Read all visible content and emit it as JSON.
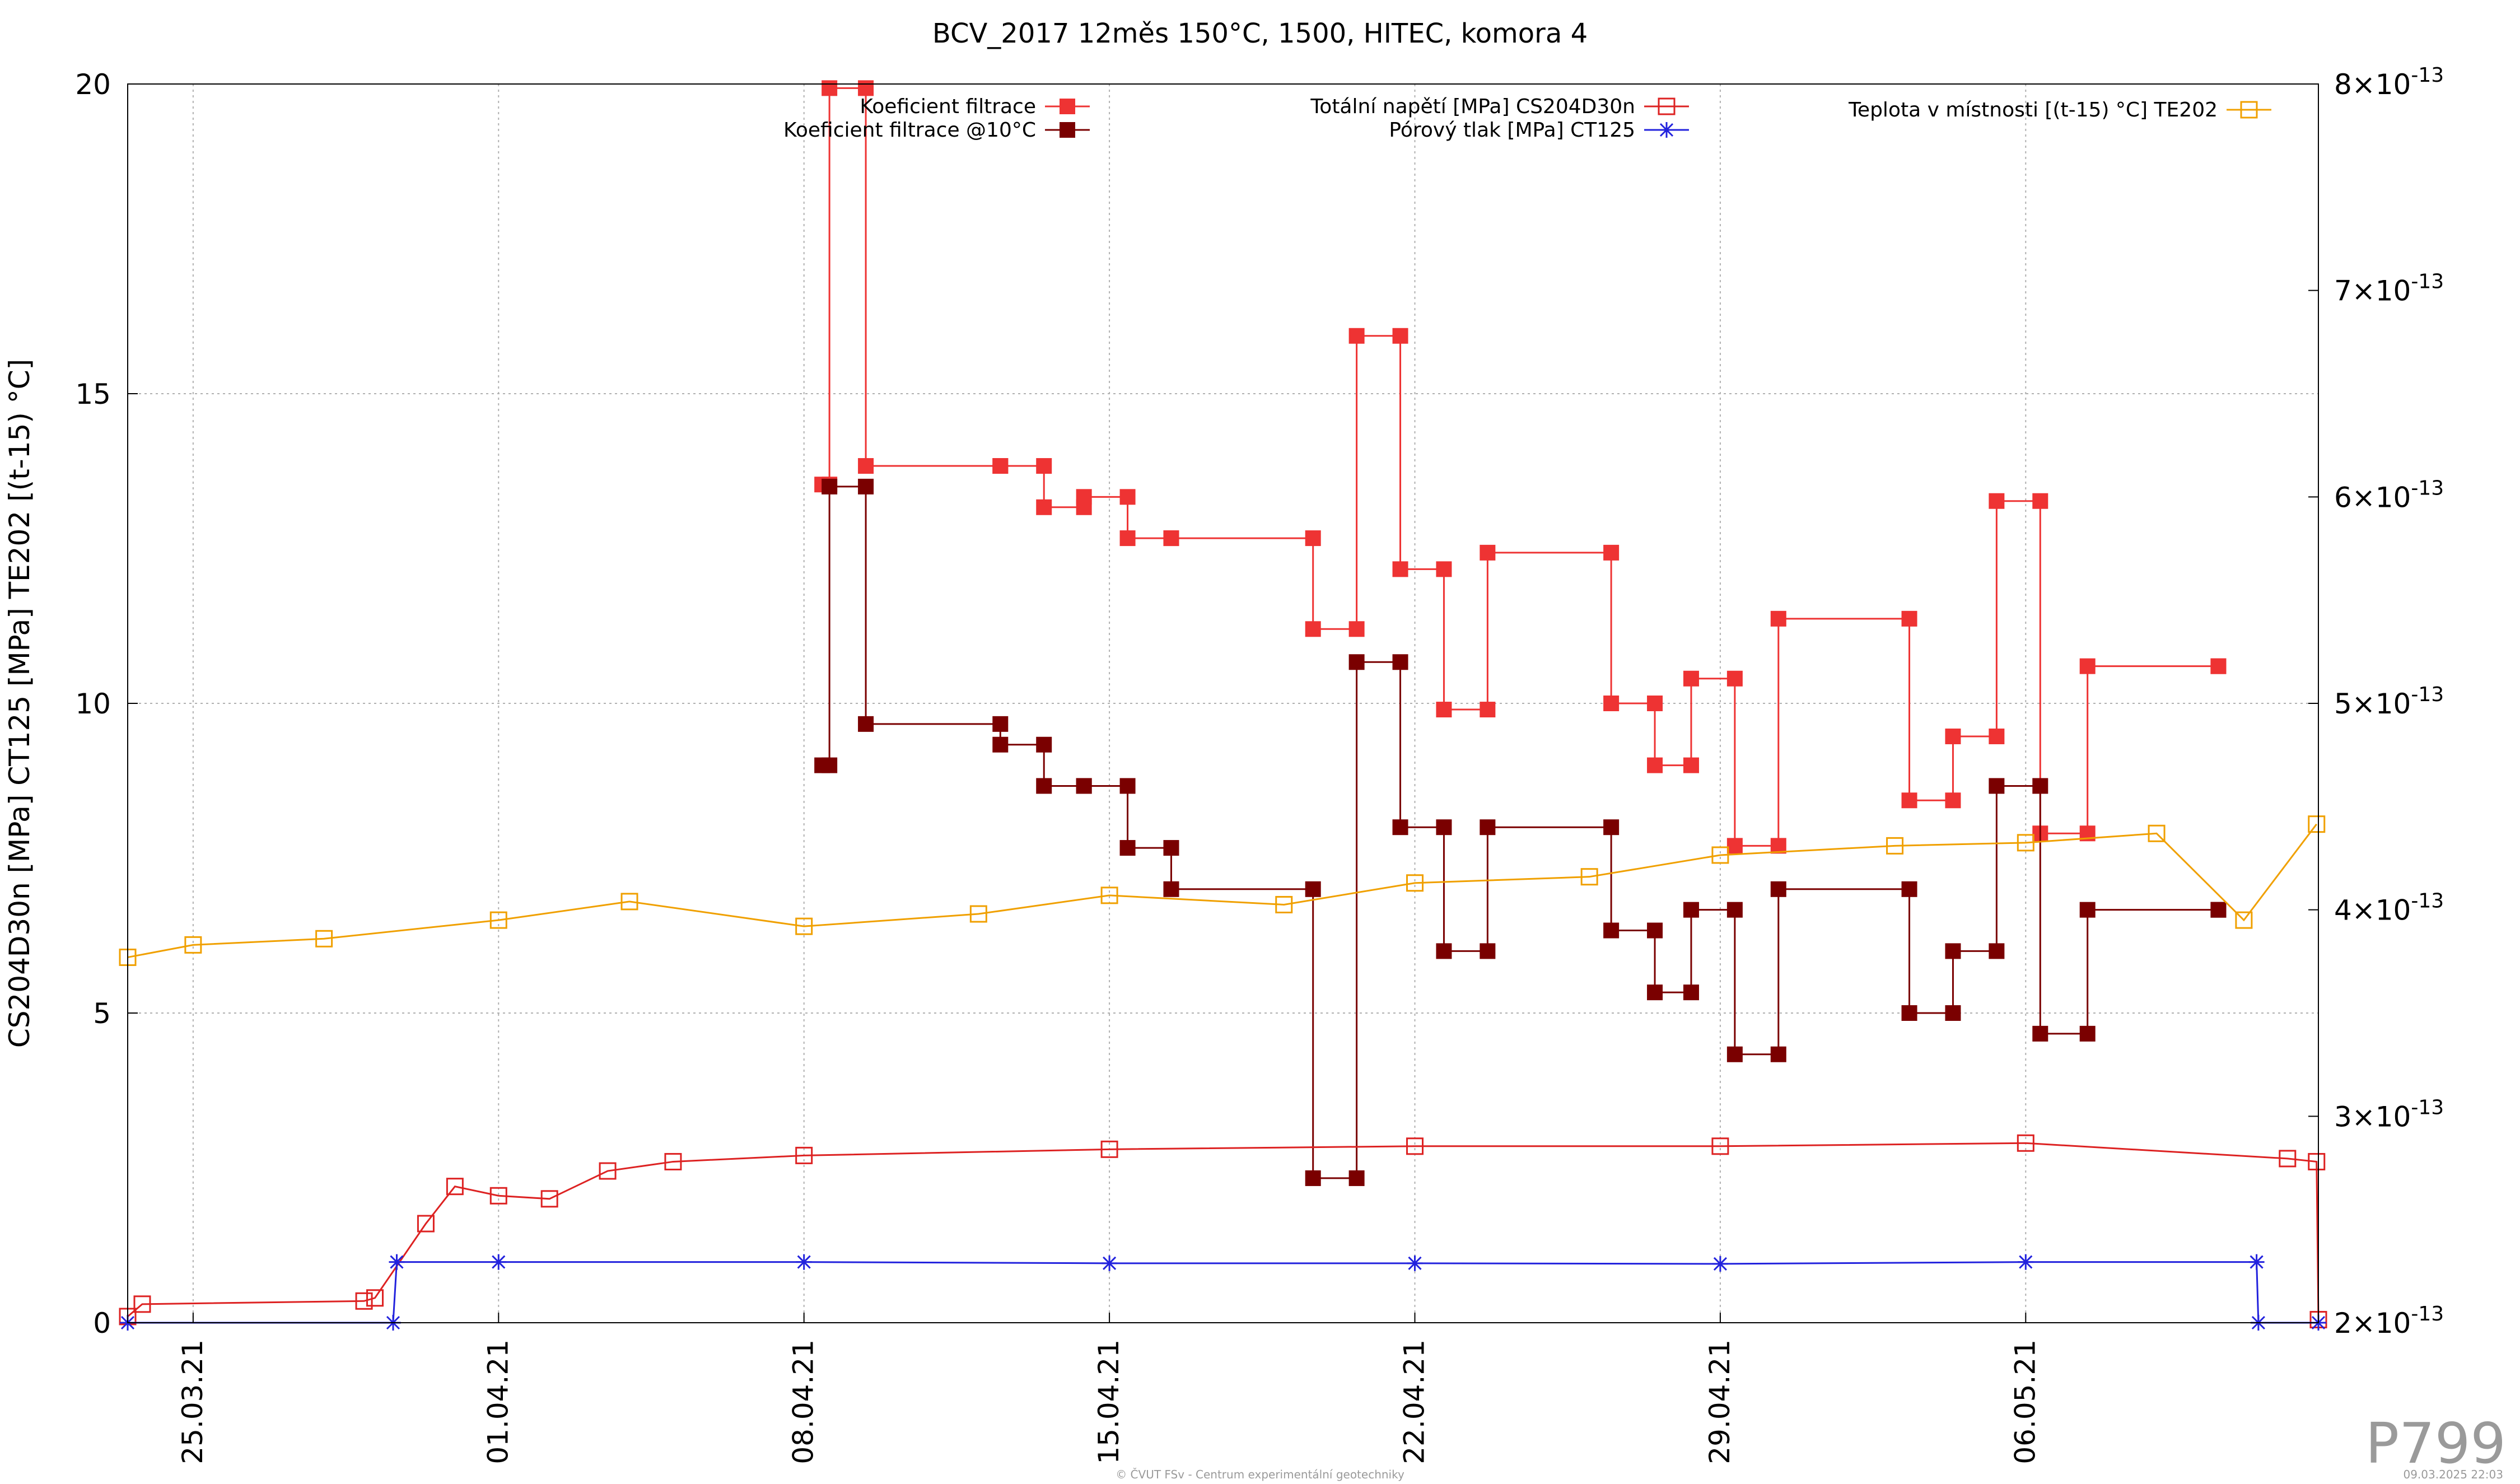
{
  "title": "BCV_2017 12měs 150°C, 1500, HITEC, komora 4",
  "plot_code": "P799",
  "footer": {
    "credit": "© ČVUT FSv - Centrum experimentální geotechniky",
    "timestamp": "09.03.2025 22:03"
  },
  "colors": {
    "filtrace": "#ee3333",
    "filtrace10": "#7a0000",
    "napeti": "#dd2222",
    "porovy": "#2222dd",
    "teplota": "#f0a000",
    "grid": "#b0b0b0"
  },
  "chart_data": {
    "type": "line",
    "title": "BCV_2017 12měs 150°C, 1500, HITEC, komora 4",
    "ylabel": "CS204D30n [MPa] CT125 [MPa] TE202 [(t-15) °C]",
    "xlabel": "",
    "xlim": [
      "2021-03-23 12:00",
      "2021-05-12 17:00"
    ],
    "ylim": [
      0,
      20
    ],
    "y2lim": [
      2e-13,
      8e-13
    ],
    "x_ticks": [
      "2021-03-25",
      "2021-04-01",
      "2021-04-08",
      "2021-04-15",
      "2021-04-22",
      "2021-04-29",
      "2021-05-06"
    ],
    "x_tick_labels": [
      "25.03.21",
      "01.04.21",
      "08.04.21",
      "15.04.21",
      "22.04.21",
      "29.04.21",
      "06.05.21"
    ],
    "y_ticks": [
      0,
      5,
      10,
      15,
      20
    ],
    "y_tick_labels": [
      "0",
      "5",
      "10",
      "15",
      "20"
    ],
    "y2_ticks": [
      2e-13,
      3e-13,
      4e-13,
      5e-13,
      6e-13,
      7e-13,
      8e-13
    ],
    "y2_tick_labels": [
      [
        "2",
        "-13"
      ],
      [
        "3",
        "-13"
      ],
      [
        "4",
        "-13"
      ],
      [
        "5",
        "-13"
      ],
      [
        "6",
        "-13"
      ],
      [
        "7",
        "-13"
      ],
      [
        "8",
        "-13"
      ]
    ],
    "grid": true,
    "legend_placement": "top",
    "series": [
      {
        "name": "Koeficient filtrace",
        "axis": "y2",
        "marker": "filled-square",
        "color": "#ee3333",
        "x": [
          "2021-04-08 10:00",
          "2021-04-08 14:00",
          "2021-04-09 10:00",
          "2021-04-12 12:00",
          "2021-04-13 12:00",
          "2021-04-14 10:00",
          "2021-04-15 10:00",
          "2021-04-16 10:00",
          "2021-04-19 16:00",
          "2021-04-20 16:00",
          "2021-04-21 16:00",
          "2021-04-22 16:00",
          "2021-04-23 16:00",
          "2021-04-26 12:00",
          "2021-04-27 12:00",
          "2021-04-28 08:00",
          "2021-04-29 08:00",
          "2021-04-30 08:00",
          "2021-05-03 08:00",
          "2021-05-04 08:00",
          "2021-05-05 08:00",
          "2021-05-06 08:00",
          "2021-05-07 10:00",
          "2021-05-10 10:00"
        ],
        "y": [
          6.06e-13,
          7.98e-13,
          6.15e-13,
          6.15e-13,
          5.95e-13,
          6e-13,
          5.8e-13,
          5.8e-13,
          5.36e-13,
          6.78e-13,
          5.65e-13,
          4.97e-13,
          5.73e-13,
          5e-13,
          4.7e-13,
          5.12e-13,
          4.31e-13,
          5.41e-13,
          4.53e-13,
          4.84e-13,
          5.98e-13,
          4.37e-13,
          5.18e-13,
          5.18e-13
        ]
      },
      {
        "name": "Koeficient filtrace @10°C",
        "axis": "y2",
        "marker": "filled-square",
        "color": "#7a0000",
        "x": [
          "2021-04-08 10:00",
          "2021-04-08 14:00",
          "2021-04-09 10:00",
          "2021-04-12 12:00",
          "2021-04-13 12:00",
          "2021-04-14 10:00",
          "2021-04-15 10:00",
          "2021-04-16 10:00",
          "2021-04-19 16:00",
          "2021-04-20 16:00",
          "2021-04-21 16:00",
          "2021-04-22 16:00",
          "2021-04-23 16:00",
          "2021-04-26 12:00",
          "2021-04-27 12:00",
          "2021-04-28 08:00",
          "2021-04-29 08:00",
          "2021-04-30 08:00",
          "2021-05-03 08:00",
          "2021-05-04 08:00",
          "2021-05-05 08:00",
          "2021-05-06 08:00",
          "2021-05-07 10:00",
          "2021-05-10 10:00"
        ],
        "y": [
          4.7e-13,
          6.05e-13,
          4.9e-13,
          4.8e-13,
          4.6e-13,
          4.6e-13,
          4.3e-13,
          4.1e-13,
          2.7e-13,
          5.2e-13,
          4.4e-13,
          3.8e-13,
          4.4e-13,
          3.9e-13,
          3.6e-13,
          4e-13,
          3.3e-13,
          4.1e-13,
          3.5e-13,
          3.8e-13,
          4.6e-13,
          3.4e-13,
          4e-13,
          4e-13
        ]
      },
      {
        "name": "Totální napětí [MPa] CS204D30n",
        "axis": "y",
        "marker": "open-square",
        "color": "#dd2222",
        "x": [
          "2021-03-23 12:00",
          "2021-03-23 20:00",
          "2021-03-28 22:00",
          "2021-03-29 04:00",
          "2021-03-30 08:00",
          "2021-03-31 00:00",
          "2021-04-01 00:00",
          "2021-04-02 04:00",
          "2021-04-03 12:00",
          "2021-04-05 00:00",
          "2021-04-08 00:00",
          "2021-04-15 00:00",
          "2021-04-22 00:00",
          "2021-04-29 00:00",
          "2021-05-06 00:00",
          "2021-05-12 00:00",
          "2021-05-12 16:00",
          "2021-05-12 17:00"
        ],
        "y": [
          0.1,
          0.3,
          0.35,
          0.4,
          1.6,
          2.2,
          2.05,
          2.0,
          2.45,
          2.6,
          2.7,
          2.8,
          2.85,
          2.85,
          2.9,
          2.65,
          2.6,
          0.05
        ]
      },
      {
        "name": "Pórový tlak [MPa] CT125",
        "axis": "y",
        "marker": "asterisk",
        "color": "#2222dd",
        "x": [
          "2021-03-23 12:00",
          "2021-03-29 14:00",
          "2021-03-29 16:00",
          "2021-04-01 00:00",
          "2021-04-08 00:00",
          "2021-04-15 00:00",
          "2021-04-22 00:00",
          "2021-04-29 00:00",
          "2021-05-06 00:00",
          "2021-05-11 07:00",
          "2021-05-11 08:00",
          "2021-05-12 17:00"
        ],
        "y": [
          0.0,
          0.0,
          0.98,
          0.98,
          0.98,
          0.96,
          0.96,
          0.95,
          0.98,
          0.98,
          0.0,
          0.0
        ]
      },
      {
        "name": "Teplota v místnosti [(t-15) °C] TE202",
        "axis": "y",
        "marker": "open-square",
        "color": "#f0a000",
        "x": [
          "2021-03-23 12:00",
          "2021-03-25 00:00",
          "2021-03-28 00:00",
          "2021-04-01 00:00",
          "2021-04-04 00:00",
          "2021-04-08 00:00",
          "2021-04-12 00:00",
          "2021-04-15 00:00",
          "2021-04-19 00:00",
          "2021-04-22 00:00",
          "2021-04-26 00:00",
          "2021-04-29 00:00",
          "2021-05-03 00:00",
          "2021-05-06 00:00",
          "2021-05-09 00:00",
          "2021-05-11 00:00",
          "2021-05-12 16:00"
        ],
        "y": [
          5.9,
          6.1,
          6.2,
          6.5,
          6.8,
          6.4,
          6.6,
          6.9,
          6.75,
          7.1,
          7.2,
          7.55,
          7.7,
          7.75,
          7.9,
          6.5,
          8.05
        ]
      }
    ]
  }
}
